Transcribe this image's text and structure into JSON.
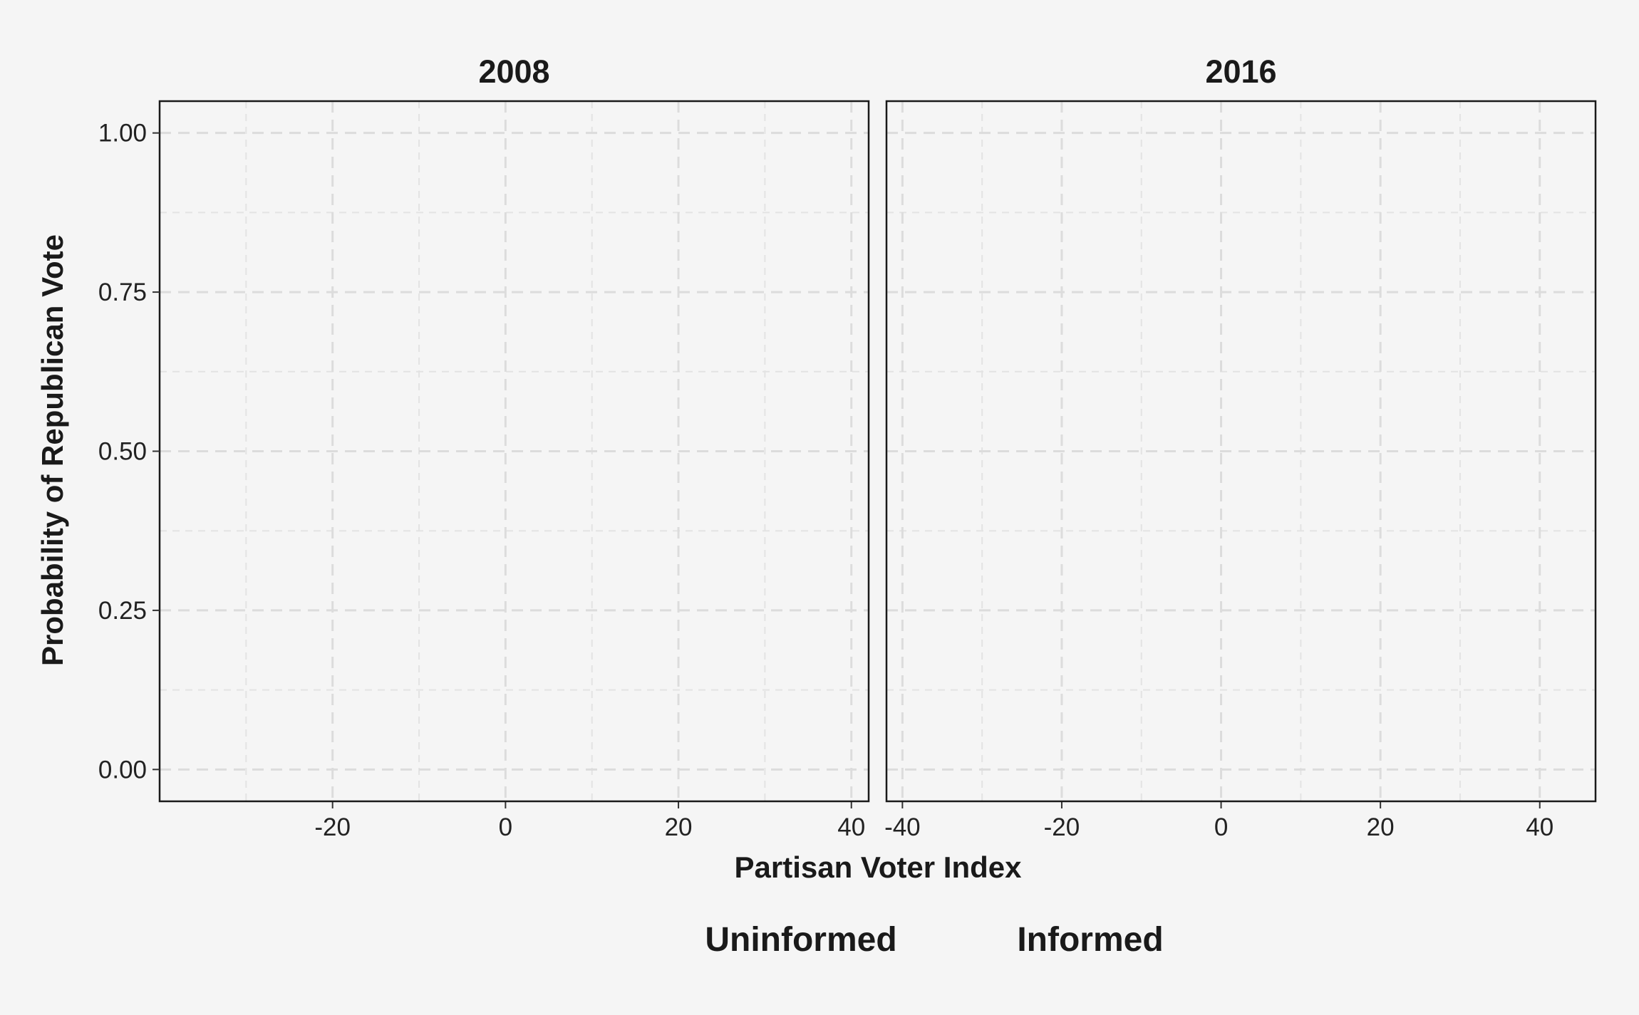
{
  "chart_data": {
    "type": "line",
    "facets": [
      {
        "title": "2008",
        "xlim": [
          -40,
          42
        ],
        "x_ticks": [
          -20,
          0,
          20,
          40
        ],
        "x_tick_labels": [
          "-20",
          "0",
          "20",
          "40"
        ]
      },
      {
        "title": "2016",
        "xlim": [
          -42,
          47
        ],
        "x_ticks": [
          -40,
          -20,
          0,
          20,
          40
        ],
        "x_tick_labels": [
          "-40",
          "-20",
          "0",
          "20",
          "40"
        ]
      }
    ],
    "ylim": [
      -0.05,
      1.05
    ],
    "y_ticks": [
      0,
      0.25,
      0.5,
      0.75,
      1
    ],
    "y_tick_labels": [
      "0.00",
      "0.25",
      "0.50",
      "0.75",
      "1.00"
    ],
    "xlabel": "Partisan Voter Index",
    "ylabel": "Probability of Republican Vote",
    "grid": true,
    "legend_position": "bottom",
    "legend": [
      {
        "name": "Uninformed"
      },
      {
        "name": "Informed"
      }
    ],
    "series": []
  }
}
